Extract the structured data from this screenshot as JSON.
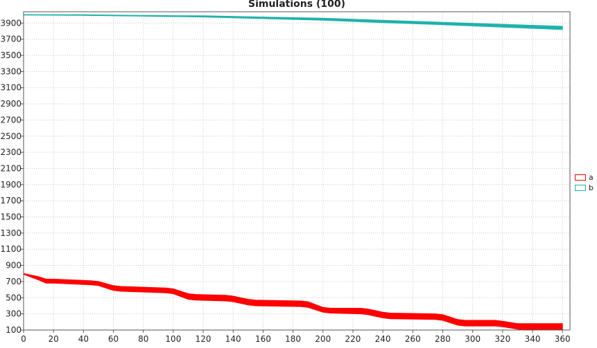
{
  "chart_data": {
    "type": "area",
    "title": "Simulations (100)",
    "xlabel": "",
    "ylabel": "",
    "xlim": [
      0,
      365
    ],
    "ylim": [
      100,
      4040
    ],
    "x_ticks": [
      0,
      20,
      40,
      60,
      80,
      100,
      120,
      140,
      160,
      180,
      200,
      220,
      240,
      260,
      280,
      300,
      320,
      340,
      360
    ],
    "y_ticks": [
      100,
      300,
      500,
      700,
      900,
      1100,
      1300,
      1500,
      1700,
      1900,
      2100,
      2300,
      2500,
      2700,
      2900,
      3100,
      3300,
      3500,
      3700,
      3900
    ],
    "grid": true,
    "legend_position": "right",
    "series": [
      {
        "name": "a",
        "color": "#ff0000",
        "x": [
          0,
          10,
          15,
          20,
          45,
          50,
          60,
          65,
          95,
          100,
          110,
          115,
          135,
          140,
          150,
          155,
          185,
          190,
          200,
          205,
          225,
          230,
          240,
          245,
          275,
          280,
          290,
          295,
          315,
          320,
          330,
          335,
          360
        ],
        "low": [
          790,
          720,
          680,
          680,
          660,
          650,
          590,
          580,
          560,
          550,
          480,
          470,
          460,
          450,
          410,
          400,
          390,
          380,
          320,
          310,
          300,
          290,
          250,
          240,
          230,
          220,
          160,
          150,
          150,
          140,
          110,
          100,
          100
        ],
        "high": [
          800,
          760,
          730,
          730,
          710,
          700,
          650,
          640,
          620,
          610,
          550,
          540,
          530,
          520,
          480,
          470,
          460,
          450,
          380,
          370,
          370,
          360,
          320,
          310,
          300,
          290,
          230,
          220,
          220,
          210,
          180,
          180,
          180
        ]
      },
      {
        "name": "b",
        "color": "#20b2aa",
        "x": [
          0,
          40,
          80,
          120,
          160,
          200,
          240,
          280,
          320,
          360
        ],
        "low": [
          4000,
          3995,
          3985,
          3975,
          3955,
          3935,
          3905,
          3880,
          3850,
          3820
        ],
        "high": [
          4005,
          4003,
          3995,
          3990,
          3975,
          3960,
          3935,
          3910,
          3885,
          3860
        ]
      }
    ]
  }
}
